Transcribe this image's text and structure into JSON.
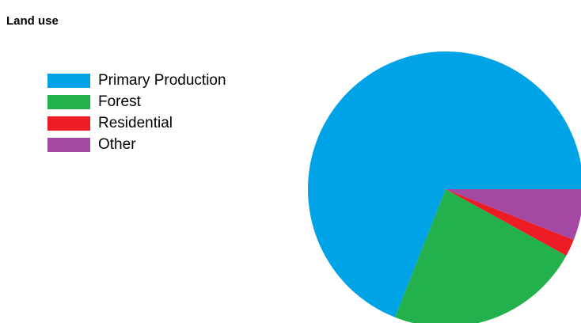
{
  "chart_data": {
    "type": "pie",
    "title": "Land use",
    "legend_position": "left",
    "series": [
      {
        "name": "Primary Production",
        "value": 69,
        "color": "#00a3e6"
      },
      {
        "name": "Forest",
        "value": 23,
        "color": "#22b14c"
      },
      {
        "name": "Residential",
        "value": 2,
        "color": "#ed1c24"
      },
      {
        "name": "Other",
        "value": 6,
        "color": "#a349a4"
      }
    ]
  }
}
